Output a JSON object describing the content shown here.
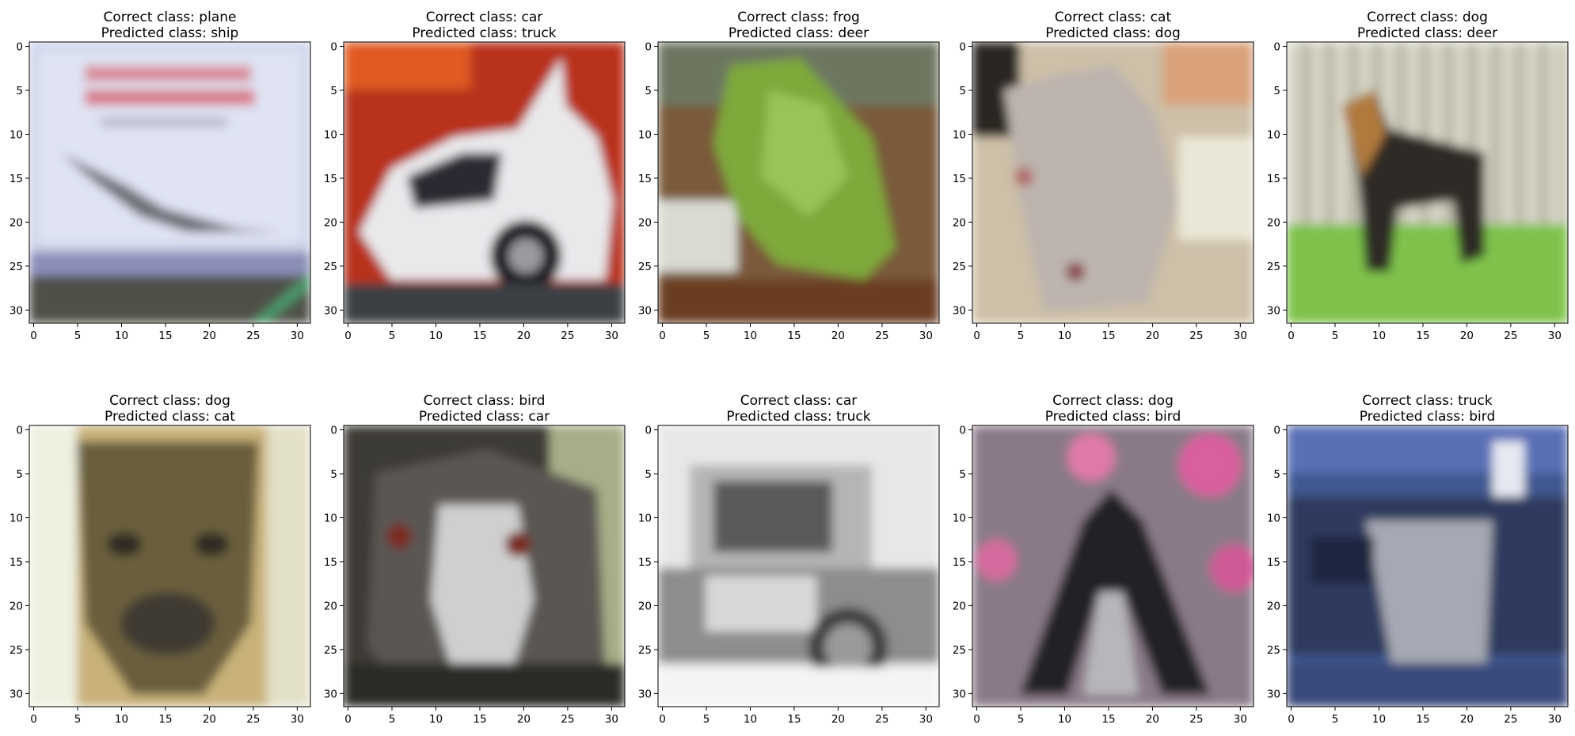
{
  "figure": {
    "rows": 2,
    "cols": 5,
    "image_size": 32,
    "ticks": [
      0,
      5,
      10,
      15,
      20,
      25,
      30
    ],
    "title_prefix_correct": "Correct class: ",
    "title_prefix_predicted": "Predicted class: "
  },
  "panels": [
    {
      "correct_title": "Correct class: plane",
      "predicted_title": "Predicted class: ship",
      "scene": "plane"
    },
    {
      "correct_title": "Correct class: car",
      "predicted_title": "Predicted class: truck",
      "scene": "car"
    },
    {
      "correct_title": "Correct class: frog",
      "predicted_title": "Predicted class: deer",
      "scene": "frog"
    },
    {
      "correct_title": "Correct class: cat",
      "predicted_title": "Predicted class: dog",
      "scene": "cat"
    },
    {
      "correct_title": "Correct class: dog",
      "predicted_title": "Predicted class: deer",
      "scene": "dog-yard"
    },
    {
      "correct_title": "Correct class: dog",
      "predicted_title": "Predicted class: cat",
      "scene": "dog-face"
    },
    {
      "correct_title": "Correct class: bird",
      "predicted_title": "Predicted class: car",
      "scene": "bird-emu"
    },
    {
      "correct_title": "Correct class: car",
      "predicted_title": "Predicted class: truck",
      "scene": "car-bw"
    },
    {
      "correct_title": "Correct class: dog",
      "predicted_title": "Predicted class: bird",
      "scene": "dog-flowers"
    },
    {
      "correct_title": "Correct class: truck",
      "predicted_title": "Predicted class: bird",
      "scene": "truck-blue"
    }
  ]
}
